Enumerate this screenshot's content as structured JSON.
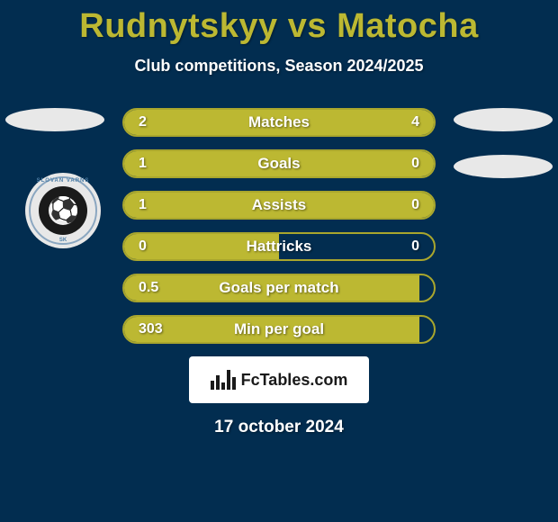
{
  "title": "Rudnytskyy vs Matocha",
  "subtitle": "Club competitions, Season 2024/2025",
  "date": "17 october 2024",
  "fctables_label": "FcTables.com",
  "logo": {
    "ring_text_top": "SLOVAN VARNS",
    "ring_text_bottom": "SK",
    "name": "slovan-varnsdorf-logo"
  },
  "colors": {
    "background": "#022d50",
    "accent": "#bcb832",
    "bar_border": "#a9a62d",
    "text": "#ffffff",
    "ellipse": "#e8e8e8",
    "fctables_bg": "#ffffff",
    "fctables_text": "#1a1a1a"
  },
  "stats": [
    {
      "label": "Matches",
      "left_value": "2",
      "right_value": "4",
      "left_pct": 33,
      "right_filled": true
    },
    {
      "label": "Goals",
      "left_value": "1",
      "right_value": "0",
      "left_pct": 77,
      "right_filled": true
    },
    {
      "label": "Assists",
      "left_value": "1",
      "right_value": "0",
      "left_pct": 77,
      "right_filled": true
    },
    {
      "label": "Hattricks",
      "left_value": "0",
      "right_value": "0",
      "left_pct": 50,
      "right_filled": false
    },
    {
      "label": "Goals per match",
      "left_value": "0.5",
      "right_value": "",
      "left_pct": 100,
      "right_filled": false
    },
    {
      "label": "Min per goal",
      "left_value": "303",
      "right_value": "",
      "left_pct": 100,
      "right_filled": false
    }
  ],
  "typography": {
    "title_fontsize": 38,
    "subtitle_fontsize": 18,
    "bar_label_fontsize": 17,
    "bar_value_fontsize": 16,
    "date_fontsize": 19
  }
}
